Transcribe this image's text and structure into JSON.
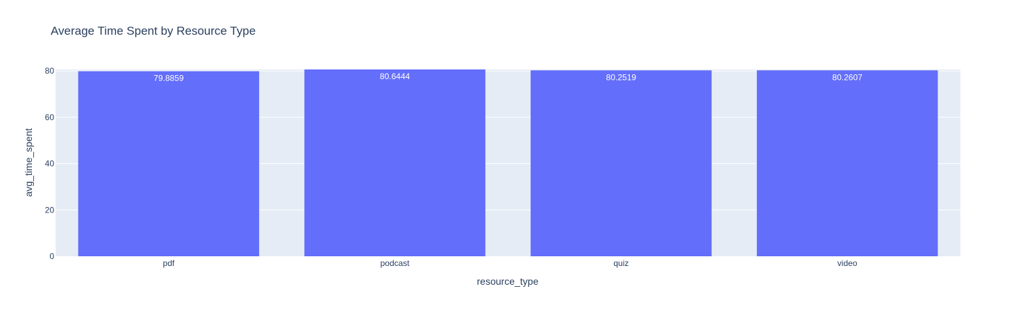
{
  "chart_data": {
    "type": "bar",
    "title": "Average Time Spent by Resource Type",
    "xlabel": "resource_type",
    "ylabel": "avg_time_spent",
    "categories": [
      "pdf",
      "podcast",
      "quiz",
      "video"
    ],
    "values": [
      79.8859,
      80.6444,
      80.2519,
      80.2607
    ],
    "value_labels": [
      "79.8859",
      "80.6444",
      "80.2519",
      "80.2607"
    ],
    "ylim": [
      0,
      80.6444
    ],
    "yticks": [
      0,
      20,
      40,
      60,
      80
    ],
    "ytick_labels": [
      "0",
      "20",
      "40",
      "60",
      "80"
    ],
    "grid": true,
    "legend": "none",
    "colors": {
      "bar": "#636efa",
      "plot_bg": "#e5ecf6",
      "grid": "#ffffff",
      "text": "#2a3f5f",
      "value_label": "#ffffff"
    }
  }
}
